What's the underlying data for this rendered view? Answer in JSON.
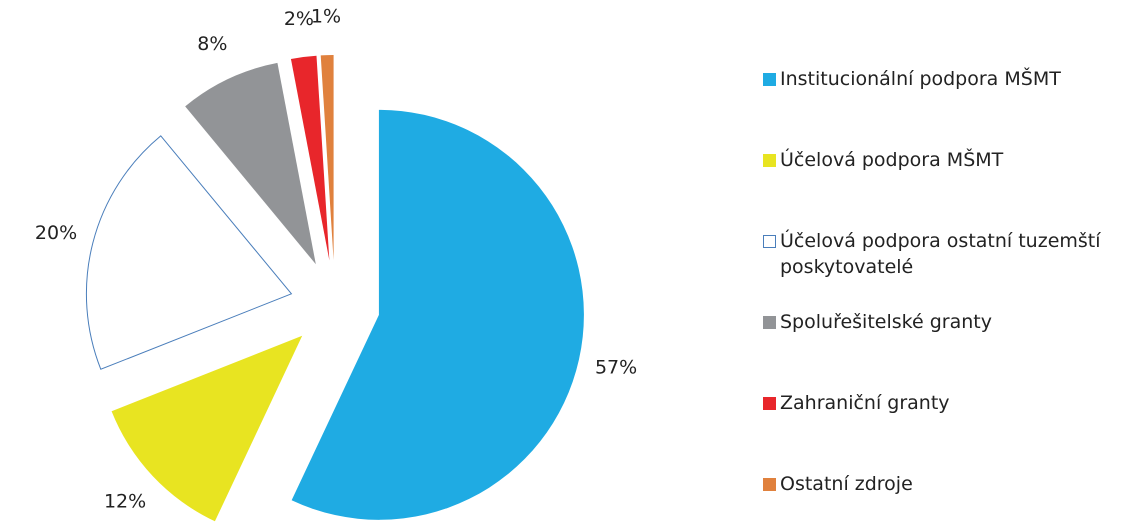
{
  "chart_data": {
    "type": "pie",
    "categories": [
      "Institucionální podpora MŠMT",
      "Účelová podpora MŠMT",
      "Účelová podpora ostatní tuzemští poskytovatelé",
      "Spoluřešitelské granty",
      "Zahraniční granty",
      "Ostatní zdroje"
    ],
    "values": [
      57,
      12,
      20,
      8,
      2,
      1
    ],
    "value_labels": [
      "57%",
      "12%",
      "20%",
      "8%",
      "2%",
      "1%"
    ],
    "colors": [
      "#1fabe3",
      "#e8e421",
      "#ffffff",
      "#929497",
      "#e8262b",
      "#e0813d"
    ],
    "legend": "right"
  }
}
